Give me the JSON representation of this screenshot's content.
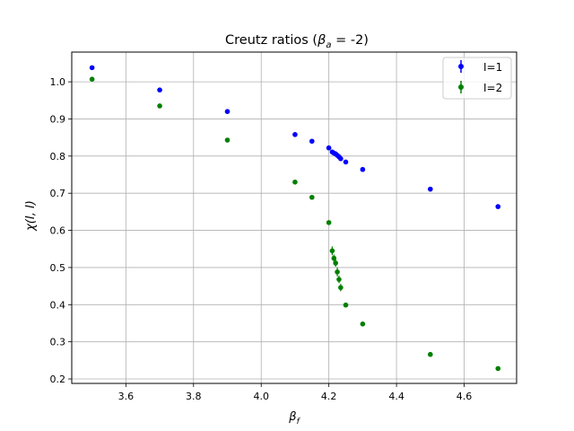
{
  "chart_data": {
    "type": "scatter",
    "title_prefix": "Creutz ratios (",
    "title_beta": "β",
    "title_sub": "a",
    "title_suffix": " = -2)",
    "xlabel_main": "β",
    "xlabel_sub": "f",
    "ylabel": "χ(I, I)",
    "xlim": [
      3.44,
      4.755
    ],
    "ylim": [
      0.188,
      1.08
    ],
    "xticks": [
      3.6,
      3.8,
      4.0,
      4.2,
      4.4,
      4.6
    ],
    "yticks": [
      0.2,
      0.3,
      0.4,
      0.5,
      0.6,
      0.7,
      0.8,
      0.9,
      1.0
    ],
    "xtick_labels": [
      "3.6",
      "3.8",
      "4.0",
      "4.2",
      "4.4",
      "4.6"
    ],
    "ytick_labels": [
      "0.2",
      "0.3",
      "0.4",
      "0.5",
      "0.6",
      "0.7",
      "0.8",
      "0.9",
      "1.0"
    ],
    "grid": true,
    "legend_position": "top-right",
    "series": [
      {
        "name": "I=1",
        "color": "#0000ff",
        "x": [
          3.5,
          3.7,
          3.9,
          4.1,
          4.15,
          4.2,
          4.21,
          4.215,
          4.22,
          4.225,
          4.23,
          4.235,
          4.25,
          4.3,
          4.5,
          4.7
        ],
        "y": [
          1.038,
          0.978,
          0.92,
          0.858,
          0.84,
          0.822,
          0.811,
          0.808,
          0.806,
          0.802,
          0.798,
          0.793,
          0.784,
          0.764,
          0.711,
          0.664
        ],
        "err": [
          0.002,
          0.002,
          0.002,
          0.002,
          0.002,
          0.002,
          0.002,
          0.002,
          0.002,
          0.002,
          0.002,
          0.002,
          0.002,
          0.002,
          0.002,
          0.002
        ]
      },
      {
        "name": "I=2",
        "color": "#008000",
        "x": [
          3.5,
          3.7,
          3.9,
          4.1,
          4.15,
          4.2,
          4.21,
          4.215,
          4.22,
          4.225,
          4.23,
          4.235,
          4.25,
          4.3,
          4.5,
          4.7
        ],
        "y": [
          1.007,
          0.935,
          0.843,
          0.73,
          0.689,
          0.621,
          0.545,
          0.525,
          0.512,
          0.488,
          0.468,
          0.446,
          0.399,
          0.348,
          0.266,
          0.228
        ],
        "err": [
          0.002,
          0.002,
          0.002,
          0.002,
          0.002,
          0.003,
          0.012,
          0.01,
          0.01,
          0.012,
          0.01,
          0.01,
          0.003,
          0.002,
          0.002,
          0.002
        ]
      }
    ]
  }
}
